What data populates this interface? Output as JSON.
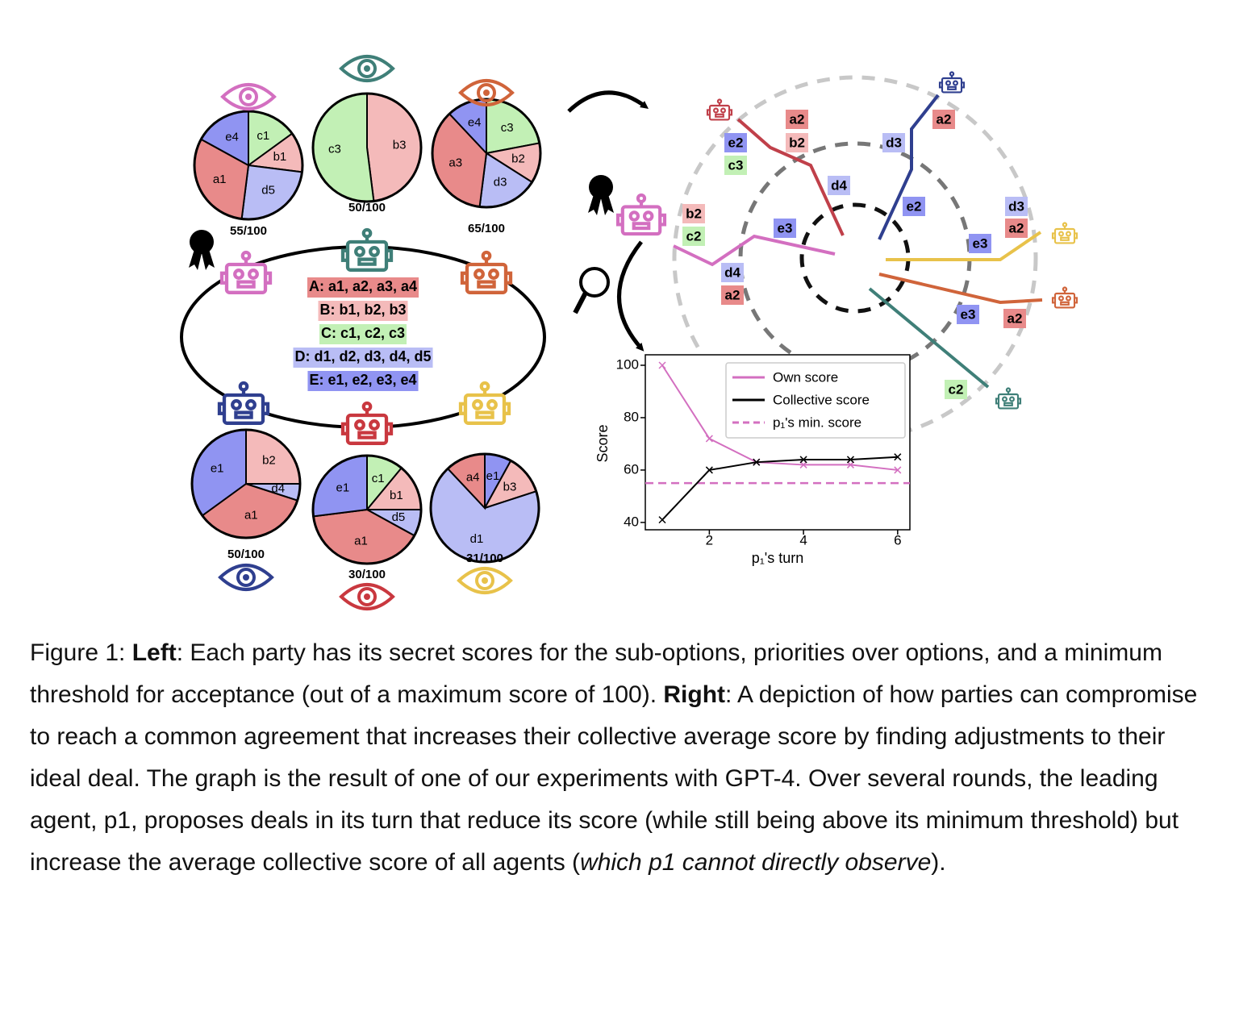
{
  "options": [
    {
      "text": "A: a1, a2, a3, a4",
      "color": "#e88a8a"
    },
    {
      "text": "B: b1, b2, b3",
      "color": "#f4baba"
    },
    {
      "text": "C: c1, c2, c3",
      "color": "#c2f0b5"
    },
    {
      "text": "D: d1, d2, d3, d4, d5",
      "color": "#b9bdf5"
    },
    {
      "text": "E: e1, e2, e3, e4",
      "color": "#9094f2"
    }
  ],
  "pies": [
    {
      "color": "#d36fc0",
      "score": "55/100",
      "slices": [
        {
          "label": "c1",
          "value": 15,
          "color": "#c2f0b5"
        },
        {
          "label": "b1",
          "value": 12,
          "color": "#f4baba"
        },
        {
          "label": "d5",
          "value": 25,
          "color": "#b9bdf5"
        },
        {
          "label": "a1",
          "value": 31,
          "color": "#e88a8a"
        },
        {
          "label": "e4",
          "value": 17,
          "color": "#9094f2"
        }
      ]
    },
    {
      "color": "#3f7f78",
      "score": "50/100",
      "slices": [
        {
          "label": "b3",
          "value": 48,
          "color": "#f4baba"
        },
        {
          "label": "c3",
          "value": 52,
          "color": "#c2f0b5"
        }
      ]
    },
    {
      "color": "#d0643a",
      "score": "65/100",
      "slices": [
        {
          "label": "c3",
          "value": 22,
          "color": "#c2f0b5"
        },
        {
          "label": "b2",
          "value": 12,
          "color": "#f4baba"
        },
        {
          "label": "d3",
          "value": 18,
          "color": "#b9bdf5"
        },
        {
          "label": "a3",
          "value": 36,
          "color": "#e88a8a"
        },
        {
          "label": "e4",
          "value": 12,
          "color": "#9094f2"
        }
      ]
    },
    {
      "color": "#2f3f8f",
      "score": "50/100",
      "slices": [
        {
          "label": "b2",
          "value": 25,
          "color": "#f4baba"
        },
        {
          "label": "d4",
          "value": 5,
          "color": "#b9bdf5"
        },
        {
          "label": "a1",
          "value": 35,
          "color": "#e88a8a"
        },
        {
          "label": "e1",
          "value": 35,
          "color": "#9094f2"
        }
      ]
    },
    {
      "color": "#c9383f",
      "score": "30/100",
      "slices": [
        {
          "label": "c1",
          "value": 11,
          "color": "#c2f0b5"
        },
        {
          "label": "b1",
          "value": 14,
          "color": "#f4baba"
        },
        {
          "label": "d5",
          "value": 8,
          "color": "#b9bdf5"
        },
        {
          "label": "a1",
          "value": 40,
          "color": "#e88a8a"
        },
        {
          "label": "e1",
          "value": 27,
          "color": "#9094f2"
        }
      ]
    },
    {
      "color": "#e8c24a",
      "score": "31/100",
      "slices": [
        {
          "label": "e1",
          "value": 8,
          "color": "#9094f2"
        },
        {
          "label": "b3",
          "value": 12,
          "color": "#f4baba"
        },
        {
          "label": "d1",
          "value": 68,
          "color": "#b9bdf5"
        },
        {
          "label": "a4",
          "value": 12,
          "color": "#e88a8a"
        }
      ]
    }
  ],
  "diagram": {
    "lines": [
      {
        "color": "#d36fc0",
        "labels": [
          {
            "text": "b2",
            "color": "#f4baba"
          },
          {
            "text": "c2",
            "color": "#c2f0b5"
          },
          {
            "text": "d4",
            "color": "#b9bdf5"
          },
          {
            "text": "a2",
            "color": "#e88a8a"
          },
          {
            "text": "e3",
            "color": "#9094f2"
          }
        ]
      },
      {
        "color": "#c0404a",
        "labels": [
          {
            "text": "a2",
            "color": "#e88a8a"
          },
          {
            "text": "b2",
            "color": "#f4baba"
          },
          {
            "text": "e2",
            "color": "#9094f2"
          },
          {
            "text": "c3",
            "color": "#c2f0b5"
          },
          {
            "text": "d4",
            "color": "#b9bdf5"
          }
        ]
      },
      {
        "color": "#2f3f8f",
        "labels": [
          {
            "text": "a2",
            "color": "#e88a8a"
          },
          {
            "text": "d3",
            "color": "#b9bdf5"
          },
          {
            "text": "e2",
            "color": "#9094f2"
          }
        ]
      },
      {
        "color": "#e8c24a",
        "labels": [
          {
            "text": "d3",
            "color": "#b9bdf5"
          },
          {
            "text": "a2",
            "color": "#e88a8a"
          },
          {
            "text": "e3",
            "color": "#9094f2"
          }
        ]
      },
      {
        "color": "#d0643a",
        "labels": [
          {
            "text": "e3",
            "color": "#9094f2"
          },
          {
            "text": "a2",
            "color": "#e88a8a"
          }
        ]
      },
      {
        "color": "#3f7f78",
        "labels": [
          {
            "text": "c2",
            "color": "#c2f0b5"
          }
        ]
      }
    ]
  },
  "chart_data": {
    "type": "line",
    "xlabel": "p₁'s turn",
    "ylabel": "Score",
    "x": [
      1,
      2,
      3,
      4,
      5,
      6
    ],
    "series": [
      {
        "name": "Own score",
        "color": "#d36fc0",
        "values": [
          100,
          72,
          63,
          62,
          62,
          60
        ]
      },
      {
        "name": "Collective score",
        "color": "#000000",
        "values": [
          41,
          60,
          63,
          64,
          64,
          65
        ]
      }
    ],
    "hlines": [
      {
        "name": "p₁'s min. score",
        "color": "#d36fc0",
        "value": 55
      }
    ],
    "xlim": [
      0.64,
      6.26
    ],
    "ylim": [
      37.2,
      104
    ],
    "xticks": [
      2,
      4,
      6
    ],
    "yticks": [
      40,
      60,
      80,
      100
    ],
    "legend": "upper right"
  },
  "caption": [
    {
      "text": "Figure 1: "
    },
    {
      "text": "Left",
      "bold": true
    },
    {
      "text": ": Each party has its secret scores for the sub-options, priorities over options, and a minimum threshold for acceptance (out of a maximum score of 100). "
    },
    {
      "text": "Right",
      "bold": true
    },
    {
      "text": ": A depiction of how parties can compromise to reach a common agreement that increases their collective average score by finding adjustments to their ideal deal. The graph is the result of one of our experiments with GPT-4. Over several rounds, the leading agent, p1, proposes deals in its turn that reduce its score (while still being above its minimum threshold) but increase the average collective score of all agents ("
    },
    {
      "text": "which p1 cannot directly observe",
      "italic": true
    },
    {
      "text": ")."
    }
  ]
}
